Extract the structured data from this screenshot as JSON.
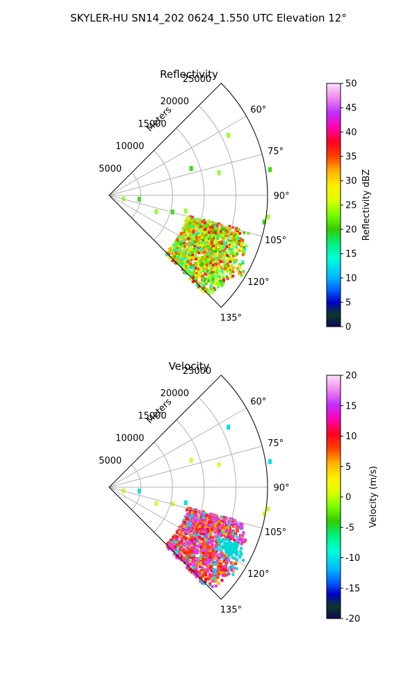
{
  "figure": {
    "suptitle": "SKYLER-HU  SN14_202  0624_1.550 UTC Elevation 12°"
  },
  "chart_data": [
    {
      "type": "heatmap",
      "title": "Reflectivity",
      "projection": "polar-sector",
      "theta_ticks": [
        "60°",
        "75°",
        "90°",
        "105°",
        "120°",
        "135°"
      ],
      "theta_range_deg": [
        45,
        135
      ],
      "r_label": "Meters",
      "r_ticks": [
        "5000",
        "10000",
        "15000",
        "20000",
        "25000"
      ],
      "r_range": [
        0,
        25000
      ],
      "grid": true,
      "colorbar": {
        "label": "Reflectivity dBZ",
        "range": [
          0,
          50
        ],
        "ticks": [
          "0",
          "5",
          "10",
          "15",
          "20",
          "25",
          "30",
          "35",
          "40",
          "45",
          "50"
        ]
      },
      "dominant_values": "main echo region 15-35 dBZ spanning azimuth 105°-135°, range ~13000-24000 m; scattered weak echoes 15-25 dBZ elsewhere"
    },
    {
      "type": "heatmap",
      "title": "Velocity",
      "projection": "polar-sector",
      "theta_ticks": [
        "60°",
        "75°",
        "90°",
        "105°",
        "120°",
        "135°"
      ],
      "theta_range_deg": [
        45,
        135
      ],
      "r_label": "Meters",
      "r_ticks": [
        "5000",
        "10000",
        "15000",
        "20000",
        "25000"
      ],
      "r_range": [
        0,
        25000
      ],
      "grid": true,
      "colorbar": {
        "label": "Velocity (m/s)",
        "range": [
          -20,
          20
        ],
        "ticks": [
          "-20",
          "-15",
          "-10",
          "-5",
          "0",
          "5",
          "10",
          "15",
          "20"
        ]
      },
      "dominant_values": "main region 8-16 m/s (red/magenta) spanning azimuth 105°-135°; small patches near -12 m/s (cyan)"
    }
  ]
}
